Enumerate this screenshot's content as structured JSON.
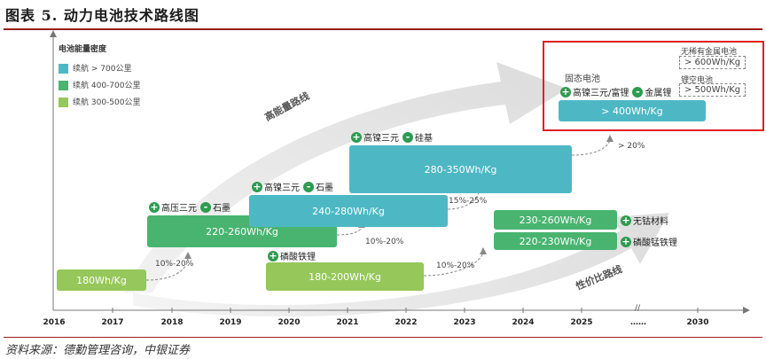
{
  "header": {
    "title": "图表 5. 动力电池技术路线图"
  },
  "footer": {
    "source": "资料来源：德勤管理咨询，中银证券"
  },
  "axis": {
    "ylabel": "电池能量密度",
    "years": [
      "2016",
      "2017",
      "2018",
      "2019",
      "2020",
      "2021",
      "2022",
      "2023",
      "2024",
      "2025",
      "……",
      "2030"
    ],
    "break_mark": "//"
  },
  "legend": [
    {
      "label": "续航 > 700公里",
      "color": "#4db8c4"
    },
    {
      "label": "续航 400-700公里",
      "color": "#48b46f"
    },
    {
      "label": "续航 300-500公里",
      "color": "#95c75a"
    }
  ],
  "routes": {
    "high_energy": "高能量路线",
    "cost_performance": "性价比路线"
  },
  "boxes": {
    "b180": "180Wh/Kg",
    "b220_260": "220-260Wh/Kg",
    "b240_280": "240-280Wh/Kg",
    "b280_350": "280-350Wh/Kg",
    "b180_200": "180-200Wh/Kg",
    "b230_260": "230-260Wh/Kg",
    "b220_230": "220-230Wh/Kg",
    "b400": "> 400Wh/Kg"
  },
  "tags": {
    "gaoya": "高压三元",
    "shimo1": "石墨",
    "gaonie1": "高镍三元",
    "shimo2": "石墨",
    "gaonie2": "高镍三元",
    "guiji": "硅基",
    "linsuan": "磷酸铁锂",
    "wugu": "无钴材料",
    "linsuanmeng": "磷酸锰铁锂",
    "gutai": "固态电池",
    "gaonie_fu": "高镍三元/富锂",
    "jinshu": "金属锂",
    "wuxi": "无稀有金属电池",
    "wuxi_val": "> 600Wh/Kg",
    "likong": "锂空电池",
    "likong_val": "> 500Wh/Kg"
  },
  "pcts": {
    "p1": "10%-20%",
    "p2": "10%-20%",
    "p3": "15%-25%",
    "p4": "> 20%",
    "p5": "10%-20%"
  }
}
